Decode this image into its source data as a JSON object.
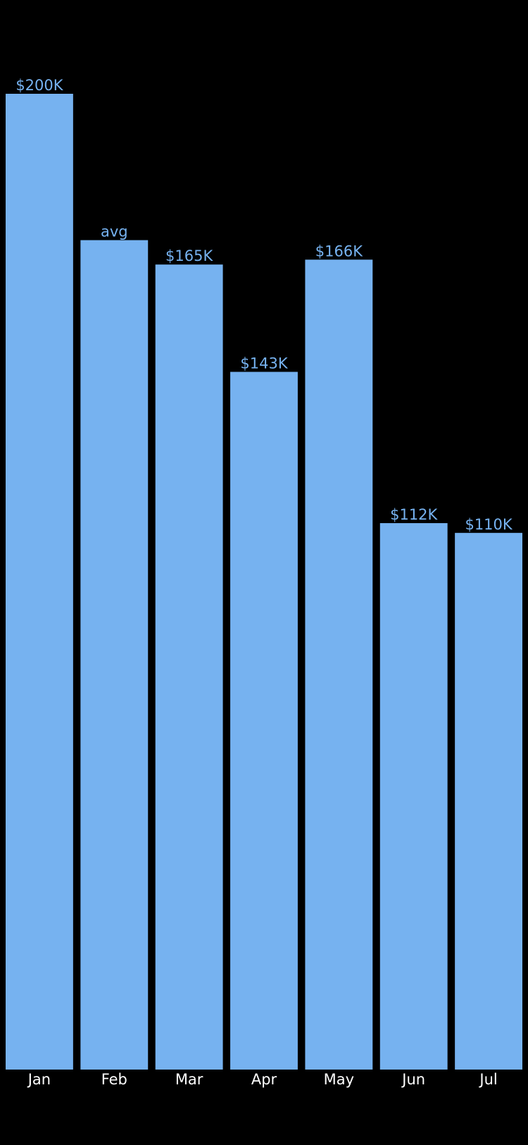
{
  "colors": {
    "background": "#000000",
    "bar": "#76b2f0",
    "value_label": "#76b2f0",
    "category_label": "#ffffff"
  },
  "chart_data": {
    "type": "bar",
    "categories": [
      "Jan",
      "Feb",
      "Mar",
      "Apr",
      "May",
      "Jun",
      "Jul"
    ],
    "values": [
      200,
      170,
      165,
      143,
      166,
      112,
      110
    ],
    "value_labels": [
      "$200K",
      "avg",
      "$165K",
      "$143K",
      "$166K",
      "$112K",
      "$110K"
    ],
    "unit": "$K",
    "ylim": [
      0,
      200
    ],
    "grid": false,
    "legend": "none"
  }
}
